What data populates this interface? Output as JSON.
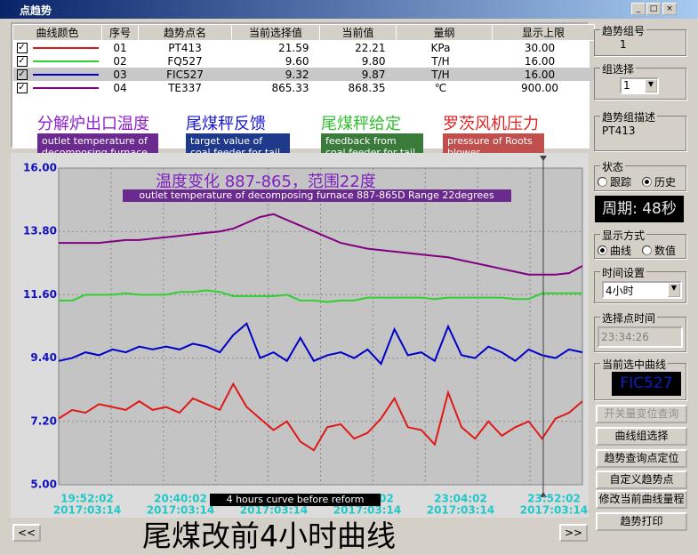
{
  "window_title": "点趋势",
  "table": {
    "headers": [
      "曲线颜色",
      "序号",
      "趋势点名",
      "当前选择值",
      "当前值",
      "量纲",
      "显示上限"
    ],
    "rows": [
      [
        "01",
        "21.59",
        "22.21",
        "KPa",
        "30.00"
      ],
      [
        "02",
        "9.60",
        "9.80",
        "T/H",
        "16.00"
      ],
      [
        "03",
        "9.32",
        "9.87",
        "T/H",
        "16.00"
      ],
      [
        "04",
        "865.33",
        "868.35",
        "℃",
        "900.00"
      ]
    ]
  },
  "annotations": [
    {
      "label": "分解炉出口温度",
      "note": "outlet temperature of decomposing furnace",
      "color": "#9020d0",
      "bg": "#6a2a8e"
    },
    {
      "label": "尾煤秤反馈",
      "note": "target value of coal feeder for tail kiln",
      "color": "#1a1ad0",
      "bg": "#1f3a8a"
    },
    {
      "label": "尾煤秤给定",
      "note": "feedback from coal feeder for tail kiln",
      "color": "#30c030",
      "bg": "#3a7a3a"
    },
    {
      "label": "罗茨风机压力",
      "note": "pressure of Roots blower",
      "color": "#e02020",
      "bg": "#c0504d"
    }
  ],
  "chart_data": {
    "type": "line",
    "ylim": [
      5,
      16
    ],
    "yticks": [
      {
        "value": 5,
        "label": "5.00"
      },
      {
        "value": 7.2,
        "label": "7.20"
      },
      {
        "value": 9.4,
        "label": "9.40"
      },
      {
        "value": 11.6,
        "label": "11.60"
      },
      {
        "value": 13.8,
        "label": "13.80"
      },
      {
        "value": 16,
        "label": "16.00"
      }
    ],
    "grid": true,
    "x_labels": [
      {
        "time": "19:52:02",
        "date": "2017:03:14"
      },
      {
        "time": "20:40:02",
        "date": "2017:03:14"
      },
      {
        "time": "21:28:02",
        "date": "2017:03:14"
      },
      {
        "time": "22:16:02",
        "date": "2017:03:14"
      },
      {
        "time": "23:04:02",
        "date": "2017:03:14"
      },
      {
        "time": "23:52:02",
        "date": "2017:03:14"
      }
    ],
    "series": [
      {
        "name": "PT413",
        "color": "#e01818",
        "values": [
          7.3,
          7.6,
          7.5,
          7.8,
          7.7,
          7.6,
          7.9,
          7.6,
          7.7,
          7.5,
          8.0,
          7.8,
          7.6,
          8.5,
          7.7,
          7.3,
          6.9,
          7.2,
          6.5,
          6.2,
          7.0,
          7.1,
          6.6,
          6.8,
          7.3,
          8.0,
          7.0,
          6.9,
          6.4,
          8.2,
          7.0,
          6.6,
          7.2,
          6.7,
          7.0,
          7.2,
          6.6,
          7.3,
          7.5,
          7.9
        ]
      },
      {
        "name": "FQ527",
        "color": "#30d030",
        "values": [
          11.4,
          11.4,
          11.6,
          11.6,
          11.6,
          11.65,
          11.6,
          11.6,
          11.6,
          11.7,
          11.7,
          11.75,
          11.7,
          11.55,
          11.55,
          11.55,
          11.55,
          11.6,
          11.4,
          11.4,
          11.35,
          11.4,
          11.4,
          11.5,
          11.5,
          11.5,
          11.5,
          11.5,
          11.45,
          11.5,
          11.5,
          11.5,
          11.5,
          11.5,
          11.45,
          11.45,
          11.65,
          11.65,
          11.65,
          11.65
        ]
      },
      {
        "name": "FIC527",
        "color": "#0000c8",
        "values": [
          9.3,
          9.4,
          9.6,
          9.5,
          9.7,
          9.6,
          9.8,
          9.7,
          9.8,
          9.7,
          9.9,
          9.8,
          9.6,
          10.2,
          10.6,
          9.4,
          9.6,
          9.3,
          10.1,
          9.3,
          9.5,
          9.6,
          9.4,
          9.7,
          9.2,
          10.4,
          9.5,
          9.6,
          9.3,
          10.5,
          9.5,
          9.4,
          9.8,
          9.6,
          9.3,
          9.7,
          9.5,
          9.4,
          9.7,
          9.6
        ]
      },
      {
        "name": "TE337",
        "color": "#800080",
        "values": [
          13.4,
          13.4,
          13.4,
          13.4,
          13.45,
          13.5,
          13.5,
          13.55,
          13.6,
          13.65,
          13.7,
          13.75,
          13.8,
          13.9,
          14.1,
          14.3,
          14.4,
          14.2,
          14.0,
          13.8,
          13.6,
          13.4,
          13.3,
          13.2,
          13.15,
          13.1,
          13.05,
          13.0,
          12.95,
          12.9,
          12.8,
          12.7,
          12.6,
          12.5,
          12.4,
          12.3,
          12.3,
          12.3,
          12.35,
          12.6
        ]
      }
    ],
    "annotations": [
      "温度变化 887-865，范围22度",
      "outlet temperature of decomposing furnace 887-865D Range 22degrees",
      "4 hours curve before reform"
    ]
  },
  "caption": "尾煤改前4小时曲线",
  "nav": [
    "<<",
    ">>"
  ],
  "panel": {
    "group_no_label": "趋势组号",
    "group_no": "1",
    "group_select_label": "组选择",
    "group_select": "1",
    "desc_label": "趋势组描述",
    "desc": "PT413",
    "state_label": "状态",
    "state_options": [
      "跟踪",
      "历史"
    ],
    "period": "周期: 48秒",
    "display_label": "显示方式",
    "display_options": [
      "曲线",
      "数值"
    ],
    "time_label": "时间设置",
    "time_value": "4小时",
    "point_time_label": "选择点时间",
    "point_time": "23:34:26",
    "curve_label": "当前选中曲线",
    "curve": "FIC527",
    "buttons": [
      "开关量变位查询",
      "曲线组选择",
      "趋势查询点定位",
      "自定义趋势点",
      "修改当前曲线量程",
      "趋势打印"
    ]
  }
}
